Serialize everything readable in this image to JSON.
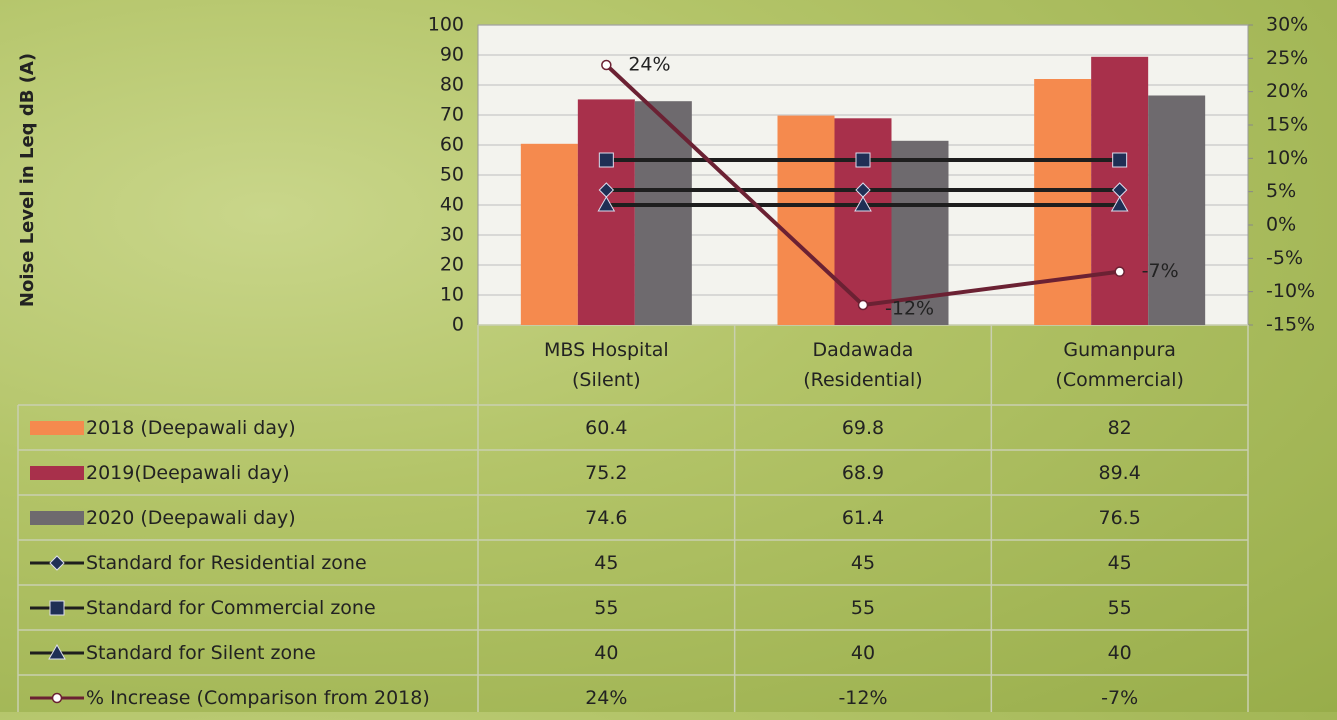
{
  "chart_data": {
    "type": "bar",
    "y_label": "Noise Level in Leq dB (A)",
    "categories": [
      "MBS Hospital (Silent)",
      "Dadawada (Residential)",
      "Gumanpura (Commercial)"
    ],
    "ylim": [
      0,
      100
    ],
    "yticks": [
      0,
      10,
      20,
      30,
      40,
      50,
      60,
      70,
      80,
      90,
      100
    ],
    "y2lim": [
      -15,
      30
    ],
    "y2ticks": [
      {
        "value": -15,
        "label": "-15%"
      },
      {
        "value": -10,
        "label": "-10%"
      },
      {
        "value": -5,
        "label": "-5%"
      },
      {
        "value": 0,
        "label": "0%"
      },
      {
        "value": 5,
        "label": "5%"
      },
      {
        "value": 10,
        "label": "10%"
      },
      {
        "value": 15,
        "label": "15%"
      },
      {
        "value": 20,
        "label": "20%"
      },
      {
        "value": 25,
        "label": "25%"
      },
      {
        "value": 30,
        "label": "30%"
      }
    ],
    "grid": true,
    "series": [
      {
        "name": "2018 (Deepawali day)",
        "kind": "bar",
        "color": "#f58a4e",
        "values": [
          60.4,
          69.8,
          82
        ]
      },
      {
        "name": "2019(Deepawali day)",
        "kind": "bar",
        "color": "#a8304b",
        "values": [
          75.2,
          68.9,
          89.4
        ]
      },
      {
        "name": "2020 (Deepawali day)",
        "kind": "bar",
        "color": "#6e6a6e",
        "values": [
          74.6,
          61.4,
          76.5
        ]
      },
      {
        "name": "Standard for Residential zone",
        "kind": "line",
        "marker": "diamond",
        "color": "#1e1e1e",
        "values": [
          45,
          45,
          45
        ]
      },
      {
        "name": "Standard for Commercial zone",
        "kind": "line",
        "marker": "square",
        "color": "#1e1e1e",
        "values": [
          55,
          55,
          55
        ]
      },
      {
        "name": "Standard for Silent zone",
        "kind": "line",
        "marker": "triangle",
        "color": "#1e1e1e",
        "values": [
          40,
          40,
          40
        ]
      },
      {
        "name": "% Increase (Comparison from 2018)",
        "kind": "line",
        "marker": "circle",
        "axis": "y2",
        "color": "#6b2133",
        "values": [
          24,
          -12,
          -7
        ],
        "value_labels": [
          "24%",
          "-12%",
          "-7%"
        ]
      }
    ]
  }
}
